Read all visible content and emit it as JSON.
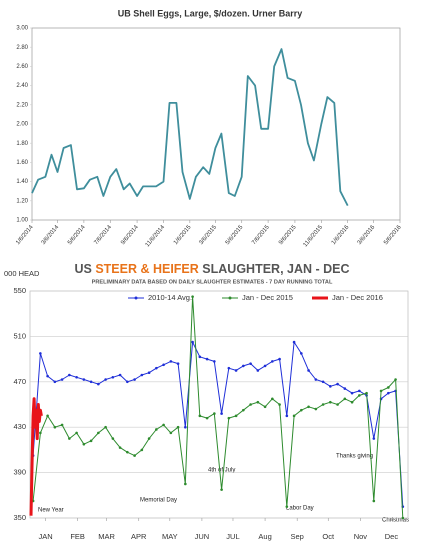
{
  "chart_data": [
    {
      "type": "line",
      "title": "UB Shell Eggs, Large, $/dozen.  Urner Barry",
      "x": [
        "1/6/2014",
        "1/20/2014",
        "2/6/2014",
        "2/20/2014",
        "3/6/2014",
        "3/20/2014",
        "4/6/2014",
        "4/20/2014",
        "5/6/2014",
        "5/20/2014",
        "6/6/2014",
        "6/20/2014",
        "7/6/2014",
        "7/20/2014",
        "8/6/2014",
        "8/20/2014",
        "9/6/2014",
        "9/20/2014",
        "10/6/2014",
        "10/20/2014",
        "11/6/2014",
        "11/20/2014",
        "12/6/2014",
        "12/20/2014",
        "1/6/2015",
        "1/20/2015",
        "2/6/2015",
        "2/20/2015",
        "3/6/2015",
        "3/20/2015",
        "4/6/2015",
        "4/20/2015",
        "5/6/2015",
        "5/20/2015",
        "6/6/2015",
        "6/20/2015",
        "7/6/2015",
        "7/20/2015",
        "8/6/2015",
        "8/20/2015",
        "9/6/2015",
        "9/20/2015",
        "10/6/2015",
        "10/20/2015",
        "11/6/2015",
        "11/20/2015",
        "12/6/2015",
        "12/20/2015",
        "1/6/2016"
      ],
      "series": [
        {
          "color": "#3f8e9c",
          "values": [
            1.28,
            1.42,
            1.45,
            1.68,
            1.5,
            1.75,
            1.78,
            1.32,
            1.33,
            1.42,
            1.45,
            1.25,
            1.45,
            1.53,
            1.32,
            1.38,
            1.25,
            1.35,
            1.35,
            1.35,
            1.4,
            2.22,
            2.22,
            1.5,
            1.22,
            1.45,
            1.55,
            1.48,
            1.75,
            1.9,
            1.28,
            1.25,
            1.45,
            2.5,
            2.4,
            1.95,
            1.95,
            2.6,
            2.78,
            2.48,
            2.45,
            2.2,
            1.8,
            1.62,
            2.0,
            2.28,
            2.22,
            1.3,
            1.15
          ]
        }
      ],
      "xlim": [
        "1/6/2014",
        "5/6/2016"
      ],
      "xticks": [
        "1/6/2014",
        "3/6/2014",
        "5/6/2014",
        "7/6/2014",
        "9/6/2014",
        "11/6/2014",
        "1/6/2015",
        "3/6/2015",
        "5/6/2015",
        "7/6/2015",
        "9/6/2015",
        "11/6/2015",
        "1/6/2016",
        "3/6/2016",
        "5/6/2016"
      ],
      "ylim": [
        1,
        3
      ],
      "yticks": [
        {
          "value": 1,
          "label": "1.00"
        },
        {
          "value": 1.2,
          "label": "1.20"
        },
        {
          "value": 1.4,
          "label": "1.40"
        },
        {
          "value": 1.6,
          "label": "1.60"
        },
        {
          "value": 1.8,
          "label": "1.80"
        },
        {
          "value": 2,
          "label": "2.00"
        },
        {
          "value": 2.2,
          "label": "2.20"
        },
        {
          "value": 2.4,
          "label": "2.40"
        },
        {
          "value": 2.6,
          "label": "2.60"
        },
        {
          "value": 2.8,
          "label": "2.80"
        },
        {
          "value": 3,
          "label": "3.00"
        }
      ],
      "grid": false
    },
    {
      "type": "line",
      "title": [
        "US ",
        "STEER & HEIFER",
        " SLAUGHTER, JAN - DEC"
      ],
      "subtitle": "PRELIMINARY DATA BASED ON DAILY SLAUGHTER ESTIMATES - 7 DAY RUNNING TOTAL",
      "y_label": "000 HEAD",
      "xlim": [
        0,
        365
      ],
      "xticks": [
        {
          "value": 15,
          "label": "JAN"
        },
        {
          "value": 46,
          "label": "FEB"
        },
        {
          "value": 74,
          "label": "MAR"
        },
        {
          "value": 105,
          "label": "APR"
        },
        {
          "value": 135,
          "label": "MAY"
        },
        {
          "value": 166,
          "label": "JUN"
        },
        {
          "value": 196,
          "label": "JUL"
        },
        {
          "value": 227,
          "label": "Aug"
        },
        {
          "value": 258,
          "label": "Sep"
        },
        {
          "value": 288,
          "label": "Oct"
        },
        {
          "value": 319,
          "label": "Nov"
        },
        {
          "value": 349,
          "label": "Dec"
        }
      ],
      "ylim": [
        350,
        550
      ],
      "yticks": [
        350,
        390,
        430,
        470,
        510,
        550
      ],
      "grid": true,
      "series": [
        {
          "name": "2010-14 Avg.",
          "color": "#1f2fd8",
          "x": [
            3,
            10,
            17,
            24,
            31,
            38,
            45,
            52,
            59,
            66,
            73,
            80,
            87,
            94,
            101,
            108,
            115,
            122,
            129,
            136,
            143,
            150,
            157,
            164,
            171,
            178,
            185,
            192,
            199,
            206,
            213,
            220,
            227,
            234,
            241,
            248,
            255,
            262,
            269,
            276,
            283,
            290,
            297,
            304,
            311,
            318,
            325,
            332,
            339,
            346,
            353,
            360
          ],
          "values": [
            405,
            495,
            475,
            470,
            472,
            476,
            474,
            472,
            470,
            468,
            472,
            474,
            476,
            470,
            472,
            476,
            478,
            482,
            485,
            488,
            486,
            430,
            505,
            492,
            490,
            488,
            442,
            482,
            480,
            484,
            486,
            480,
            484,
            488,
            490,
            440,
            505,
            495,
            480,
            472,
            470,
            466,
            468,
            464,
            460,
            462,
            458,
            420,
            455,
            460,
            462,
            360
          ]
        },
        {
          "name": "Jan - Dec 2015",
          "color": "#2e8b2e",
          "x": [
            3,
            10,
            17,
            24,
            31,
            38,
            45,
            52,
            59,
            66,
            73,
            80,
            87,
            94,
            101,
            108,
            115,
            122,
            129,
            136,
            143,
            150,
            157,
            164,
            171,
            178,
            185,
            192,
            199,
            206,
            213,
            220,
            227,
            234,
            241,
            248,
            255,
            262,
            269,
            276,
            283,
            290,
            297,
            304,
            311,
            318,
            325,
            332,
            339,
            346,
            353,
            360
          ],
          "values": [
            365,
            425,
            440,
            430,
            432,
            420,
            425,
            415,
            418,
            425,
            430,
            420,
            412,
            408,
            405,
            410,
            420,
            428,
            432,
            425,
            430,
            380,
            545,
            440,
            438,
            442,
            375,
            438,
            440,
            445,
            450,
            452,
            448,
            455,
            450,
            360,
            440,
            445,
            448,
            446,
            450,
            452,
            450,
            455,
            452,
            458,
            460,
            365,
            462,
            465,
            472,
            350
          ]
        },
        {
          "name": "Jan - Dec 2016",
          "color": "#e8141a",
          "x": [
            1,
            2,
            3,
            4,
            5,
            6,
            7,
            8,
            9,
            10,
            11
          ],
          "values": [
            352,
            400,
            440,
            455,
            430,
            445,
            420,
            450,
            435,
            445,
            440
          ]
        }
      ],
      "annotations": [
        "New Year",
        "Memorial Day",
        "4th of July",
        "Labor Day",
        "Thanks giving",
        "Christmas"
      ]
    }
  ]
}
